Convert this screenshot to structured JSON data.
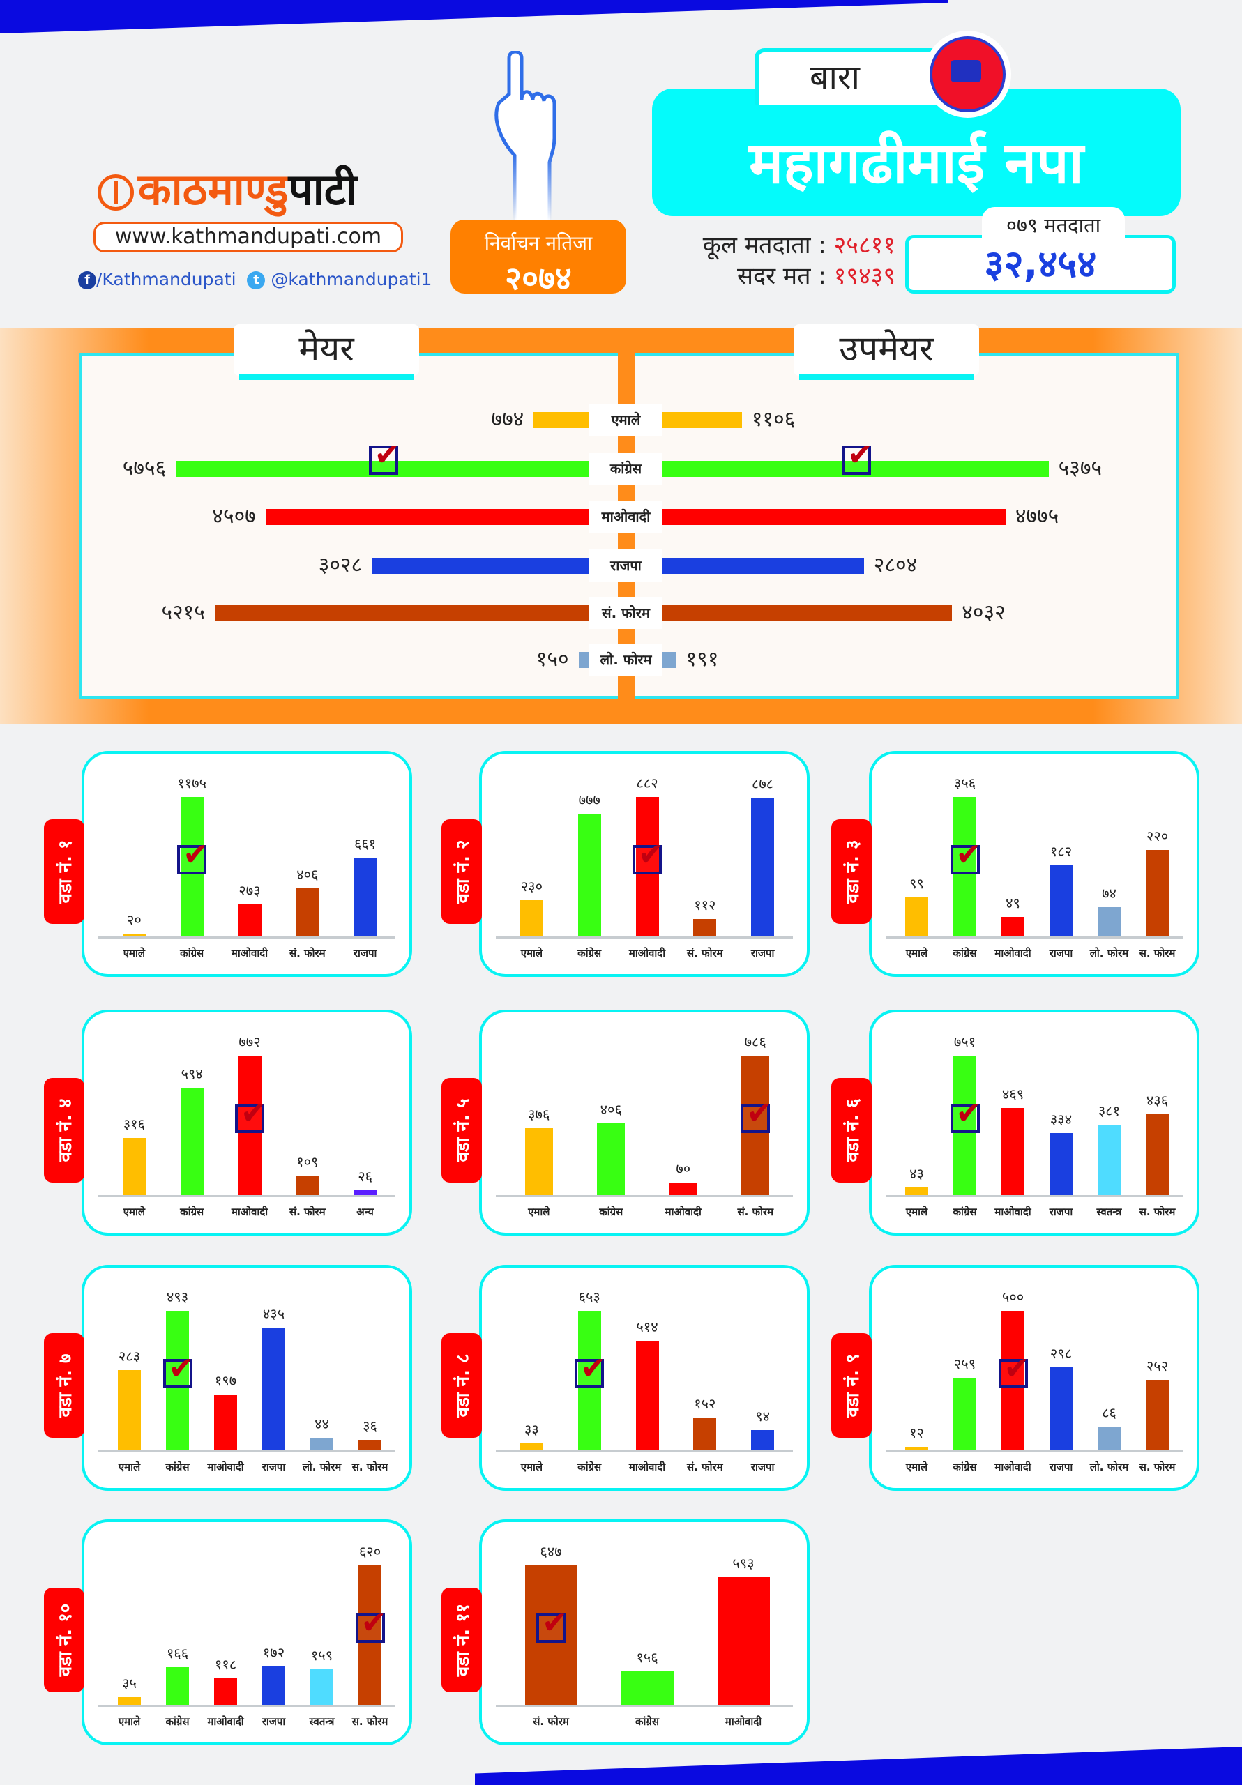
{
  "header": {
    "logo_part1": "काठमाण्डु",
    "logo_part2": "पाटी",
    "website": "www.kathmandupati.com",
    "facebook": "/Kathmandupati",
    "twitter": "@kathmandupati1",
    "badge_line1": "निर्वाचन नतिजा",
    "badge_line2": "२०७४",
    "district": "बारा",
    "municipality": "महागढीमाई नपा",
    "total_voters_label": "कूल मतदाता :",
    "total_voters": "२५८११",
    "valid_votes_label": "सदर मत :",
    "valid_votes": "१९४३९",
    "voters_079_label": "०७९ मतदाता",
    "voters_079": "३२,४५४"
  },
  "colors": {
    "emale": "#ffbe00",
    "congress": "#38ff12",
    "maoist": "#ff0000",
    "rajpa": "#1a3fe0",
    "sforum": "#c64000",
    "loforum": "#7ea6d0",
    "swatantra": "#4fdcff",
    "anya": "#5a1eff"
  },
  "mayor_section": {
    "mayor_title": "मेयर",
    "deputy_title": "उपमेयर",
    "rows": [
      {
        "party": "एमाले",
        "key": "emale",
        "mayor": 774,
        "mayor_text": "७७४",
        "deputy": 1106,
        "deputy_text": "११०६",
        "mayor_winner": false,
        "deputy_winner": false
      },
      {
        "party": "कांग्रेस",
        "key": "congress",
        "mayor": 5756,
        "mayor_text": "५७५६",
        "deputy": 5375,
        "deputy_text": "५३७५",
        "mayor_winner": true,
        "deputy_winner": true
      },
      {
        "party": "माओवादी",
        "key": "maoist",
        "mayor": 4507,
        "mayor_text": "४५०७",
        "deputy": 4775,
        "deputy_text": "४७७५",
        "mayor_winner": false,
        "deputy_winner": false
      },
      {
        "party": "राजपा",
        "key": "rajpa",
        "mayor": 3028,
        "mayor_text": "३०२८",
        "deputy": 2804,
        "deputy_text": "२८०४",
        "mayor_winner": false,
        "deputy_winner": false
      },
      {
        "party": "सं. फोरम",
        "key": "sforum",
        "mayor": 5215,
        "mayor_text": "५२१५",
        "deputy": 4032,
        "deputy_text": "४०३२",
        "mayor_winner": false,
        "deputy_winner": false
      },
      {
        "party": "लो. फोरम",
        "key": "loforum",
        "mayor": 150,
        "mayor_text": "१५०",
        "deputy": 191,
        "deputy_text": "१९१",
        "mayor_winner": false,
        "deputy_winner": false
      }
    ]
  },
  "wards": [
    {
      "label": "वडा नं. १",
      "winner": 1,
      "bars": [
        {
          "party": "एमाले",
          "key": "emale",
          "value": 20,
          "text": "२०"
        },
        {
          "party": "कांग्रेस",
          "key": "congress",
          "value": 1175,
          "text": "११७५"
        },
        {
          "party": "माओवादी",
          "key": "maoist",
          "value": 273,
          "text": "२७३"
        },
        {
          "party": "सं. फोरम",
          "key": "sforum",
          "value": 406,
          "text": "४०६"
        },
        {
          "party": "राजपा",
          "key": "rajpa",
          "value": 661,
          "text": "६६१"
        }
      ]
    },
    {
      "label": "वडा नं. २",
      "winner": 2,
      "bars": [
        {
          "party": "एमाले",
          "key": "emale",
          "value": 230,
          "text": "२३०"
        },
        {
          "party": "कांग्रेस",
          "key": "congress",
          "value": 777,
          "text": "७७७"
        },
        {
          "party": "माओवादी",
          "key": "maoist",
          "value": 882,
          "text": "८८२"
        },
        {
          "party": "सं. फोरम",
          "key": "sforum",
          "value": 112,
          "text": "११२"
        },
        {
          "party": "राजपा",
          "key": "rajpa",
          "value": 878,
          "text": "८७८"
        }
      ]
    },
    {
      "label": "वडा नं. ३",
      "winner": 1,
      "bars": [
        {
          "party": "एमाले",
          "key": "emale",
          "value": 99,
          "text": "९९"
        },
        {
          "party": "कांग्रेस",
          "key": "congress",
          "value": 356,
          "text": "३५६"
        },
        {
          "party": "माओवादी",
          "key": "maoist",
          "value": 49,
          "text": "४९"
        },
        {
          "party": "राजपा",
          "key": "rajpa",
          "value": 182,
          "text": "१८२"
        },
        {
          "party": "लो. फोरम",
          "key": "loforum",
          "value": 74,
          "text": "७४"
        },
        {
          "party": "स. फोरम",
          "key": "sforum",
          "value": 220,
          "text": "२२०"
        }
      ]
    },
    {
      "label": "वडा नं. ४",
      "winner": 2,
      "bars": [
        {
          "party": "एमाले",
          "key": "emale",
          "value": 316,
          "text": "३१६"
        },
        {
          "party": "कांग्रेस",
          "key": "congress",
          "value": 594,
          "text": "५९४"
        },
        {
          "party": "माओवादी",
          "key": "maoist",
          "value": 772,
          "text": "७७२"
        },
        {
          "party": "सं. फोरम",
          "key": "sforum",
          "value": 109,
          "text": "१०९"
        },
        {
          "party": "अन्य",
          "key": "anya",
          "value": 26,
          "text": "२६"
        }
      ]
    },
    {
      "label": "वडा नं. ५",
      "winner": 3,
      "bars": [
        {
          "party": "एमाले",
          "key": "emale",
          "value": 376,
          "text": "३७६"
        },
        {
          "party": "कांग्रेस",
          "key": "congress",
          "value": 406,
          "text": "४०६"
        },
        {
          "party": "माओवादी",
          "key": "maoist",
          "value": 70,
          "text": "७०"
        },
        {
          "party": "सं. फोरम",
          "key": "sforum",
          "value": 786,
          "text": "७८६"
        }
      ]
    },
    {
      "label": "वडा नं. ६",
      "winner": 1,
      "bars": [
        {
          "party": "एमाले",
          "key": "emale",
          "value": 43,
          "text": "४३"
        },
        {
          "party": "कांग्रेस",
          "key": "congress",
          "value": 751,
          "text": "७५१"
        },
        {
          "party": "माओवादी",
          "key": "maoist",
          "value": 469,
          "text": "४६९"
        },
        {
          "party": "राजपा",
          "key": "rajpa",
          "value": 334,
          "text": "३३४"
        },
        {
          "party": "स्वतन्त्र",
          "key": "swatantra",
          "value": 381,
          "text": "३८१"
        },
        {
          "party": "स. फोरम",
          "key": "sforum",
          "value": 436,
          "text": "४३६"
        }
      ]
    },
    {
      "label": "वडा नं. ७",
      "winner": 1,
      "bars": [
        {
          "party": "एमाले",
          "key": "emale",
          "value": 283,
          "text": "२८३"
        },
        {
          "party": "कांग्रेस",
          "key": "congress",
          "value": 493,
          "text": "४९३"
        },
        {
          "party": "माओवादी",
          "key": "maoist",
          "value": 197,
          "text": "१९७"
        },
        {
          "party": "राजपा",
          "key": "rajpa",
          "value": 435,
          "text": "४३५"
        },
        {
          "party": "लो. फोरम",
          "key": "loforum",
          "value": 44,
          "text": "४४"
        },
        {
          "party": "स. फोरम",
          "key": "sforum",
          "value": 36,
          "text": "३६"
        }
      ]
    },
    {
      "label": "वडा नं. ८",
      "winner": 1,
      "bars": [
        {
          "party": "एमाले",
          "key": "emale",
          "value": 33,
          "text": "३३"
        },
        {
          "party": "कांग्रेस",
          "key": "congress",
          "value": 653,
          "text": "६५३"
        },
        {
          "party": "माओवादी",
          "key": "maoist",
          "value": 514,
          "text": "५१४"
        },
        {
          "party": "सं. फोरम",
          "key": "sforum",
          "value": 152,
          "text": "१५२"
        },
        {
          "party": "राजपा",
          "key": "rajpa",
          "value": 94,
          "text": "९४"
        }
      ]
    },
    {
      "label": "वडा नं. ९",
      "winner": 2,
      "bars": [
        {
          "party": "एमाले",
          "key": "emale",
          "value": 12,
          "text": "१२"
        },
        {
          "party": "कांग्रेस",
          "key": "congress",
          "value": 259,
          "text": "२५९"
        },
        {
          "party": "माओवादी",
          "key": "maoist",
          "value": 500,
          "text": "५००"
        },
        {
          "party": "राजपा",
          "key": "rajpa",
          "value": 298,
          "text": "२९८"
        },
        {
          "party": "लो. फोरम",
          "key": "loforum",
          "value": 86,
          "text": "८६"
        },
        {
          "party": "स. फोरम",
          "key": "sforum",
          "value": 252,
          "text": "२५२"
        }
      ]
    },
    {
      "label": "वडा नं. १०",
      "winner": 5,
      "bars": [
        {
          "party": "एमाले",
          "key": "emale",
          "value": 35,
          "text": "३५"
        },
        {
          "party": "कांग्रेस",
          "key": "congress",
          "value": 166,
          "text": "१६६"
        },
        {
          "party": "माओवादी",
          "key": "maoist",
          "value": 118,
          "text": "११८"
        },
        {
          "party": "राजपा",
          "key": "rajpa",
          "value": 172,
          "text": "१७२"
        },
        {
          "party": "स्वतन्त्र",
          "key": "swatantra",
          "value": 159,
          "text": "१५९"
        },
        {
          "party": "स. फोरम",
          "key": "sforum",
          "value": 620,
          "text": "६२०"
        }
      ]
    },
    {
      "label": "वडा नं. ११",
      "winner": 0,
      "bars": [
        {
          "party": "सं. फोरम",
          "key": "sforum",
          "value": 647,
          "text": "६४७"
        },
        {
          "party": "कांग्रेस",
          "key": "congress",
          "value": 156,
          "text": "१५६"
        },
        {
          "party": "माओवादी",
          "key": "maoist",
          "value": 593,
          "text": "५९३"
        }
      ]
    }
  ]
}
